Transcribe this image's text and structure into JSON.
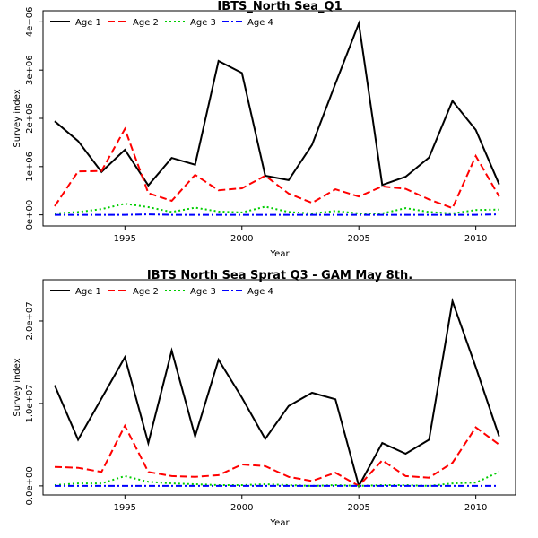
{
  "chart_data": [
    {
      "type": "line",
      "title": "IBTS_North Sea_Q1",
      "xlabel": "Year",
      "ylabel": "Survey index",
      "xlim": [
        1991.5,
        2011.7
      ],
      "ylim": [
        -230000,
        4230000
      ],
      "xticks": [
        1995,
        2000,
        2005,
        2010
      ],
      "xtick_labels": [
        "1995",
        "2000",
        "2005",
        "2010"
      ],
      "yticks": [
        0,
        1000000,
        2000000,
        3000000,
        4000000
      ],
      "ytick_labels": [
        "0e+00",
        "1e+06",
        "2e+06",
        "3e+06",
        "4e+06"
      ],
      "legend_position": "top",
      "x": [
        1992,
        1993,
        1994,
        1995,
        1996,
        1997,
        1998,
        1999,
        2000,
        2001,
        2002,
        2003,
        2004,
        2005,
        2006,
        2007,
        2008,
        2009,
        2010,
        2011
      ],
      "series": [
        {
          "name": "Age 1",
          "color": "#000000",
          "dash": "solid",
          "values": [
            1940000,
            1530000,
            890000,
            1350000,
            610000,
            1180000,
            1040000,
            3190000,
            2940000,
            810000,
            720000,
            1450000,
            2720000,
            3970000,
            620000,
            790000,
            1190000,
            2360000,
            1760000,
            630000
          ]
        },
        {
          "name": "Age 2",
          "color": "#ff0000",
          "dash": "dashed",
          "values": [
            180000,
            900000,
            910000,
            1780000,
            450000,
            290000,
            830000,
            510000,
            550000,
            810000,
            440000,
            250000,
            530000,
            380000,
            590000,
            540000,
            320000,
            140000,
            1220000,
            380000
          ]
        },
        {
          "name": "Age 3",
          "color": "#00cd00",
          "dash": "dotted",
          "values": [
            30000,
            60000,
            120000,
            230000,
            160000,
            60000,
            150000,
            70000,
            50000,
            170000,
            60000,
            30000,
            80000,
            30000,
            30000,
            140000,
            60000,
            30000,
            100000,
            110000
          ]
        },
        {
          "name": "Age 4",
          "color": "#0000ff",
          "dash": "dotdash",
          "values": [
            0,
            0,
            0,
            0,
            10000,
            0,
            0,
            0,
            0,
            0,
            0,
            0,
            0,
            0,
            0,
            0,
            0,
            0,
            0,
            10000
          ]
        }
      ]
    },
    {
      "type": "line",
      "title": "IBTS North Sea Sprat Q3 - GAM May 8th.",
      "xlabel": "Year",
      "ylabel": "Survey index",
      "xlim": [
        1991.5,
        2011.7
      ],
      "ylim": [
        -1100000,
        25000000
      ],
      "xticks": [
        1995,
        2000,
        2005,
        2010
      ],
      "xtick_labels": [
        "1995",
        "2000",
        "2005",
        "2010"
      ],
      "yticks": [
        0,
        10000000,
        20000000
      ],
      "ytick_labels": [
        "0.0e+00",
        "1.0e+07",
        "2.0e+07"
      ],
      "legend_position": "top",
      "x": [
        1992,
        1993,
        1994,
        1995,
        1996,
        1997,
        1998,
        1999,
        2000,
        2001,
        2002,
        2003,
        2004,
        2005,
        2006,
        2007,
        2008,
        2009,
        2010,
        2011
      ],
      "series": [
        {
          "name": "Age 1",
          "color": "#000000",
          "dash": "solid",
          "values": [
            12200000,
            5600000,
            10600000,
            15600000,
            5200000,
            16400000,
            6000000,
            15300000,
            10700000,
            5700000,
            9700000,
            11300000,
            10500000,
            0,
            5200000,
            3900000,
            5600000,
            22400000,
            14400000,
            6000000
          ]
        },
        {
          "name": "Age 2",
          "color": "#ff0000",
          "dash": "dashed",
          "values": [
            2300000,
            2200000,
            1700000,
            7300000,
            1700000,
            1200000,
            1100000,
            1300000,
            2600000,
            2400000,
            1100000,
            600000,
            1600000,
            0,
            3100000,
            1200000,
            1000000,
            2800000,
            7100000,
            5000000
          ]
        },
        {
          "name": "Age 3",
          "color": "#00cd00",
          "dash": "dotted",
          "values": [
            100000,
            300000,
            300000,
            1200000,
            500000,
            300000,
            200000,
            100000,
            100000,
            200000,
            100000,
            0,
            100000,
            0,
            100000,
            100000,
            0,
            300000,
            400000,
            1700000
          ]
        },
        {
          "name": "Age 4",
          "color": "#0000ff",
          "dash": "dotdash",
          "values": [
            0,
            0,
            0,
            0,
            0,
            0,
            0,
            0,
            0,
            0,
            0,
            0,
            0,
            0,
            0,
            0,
            0,
            0,
            0,
            0
          ]
        }
      ]
    }
  ]
}
